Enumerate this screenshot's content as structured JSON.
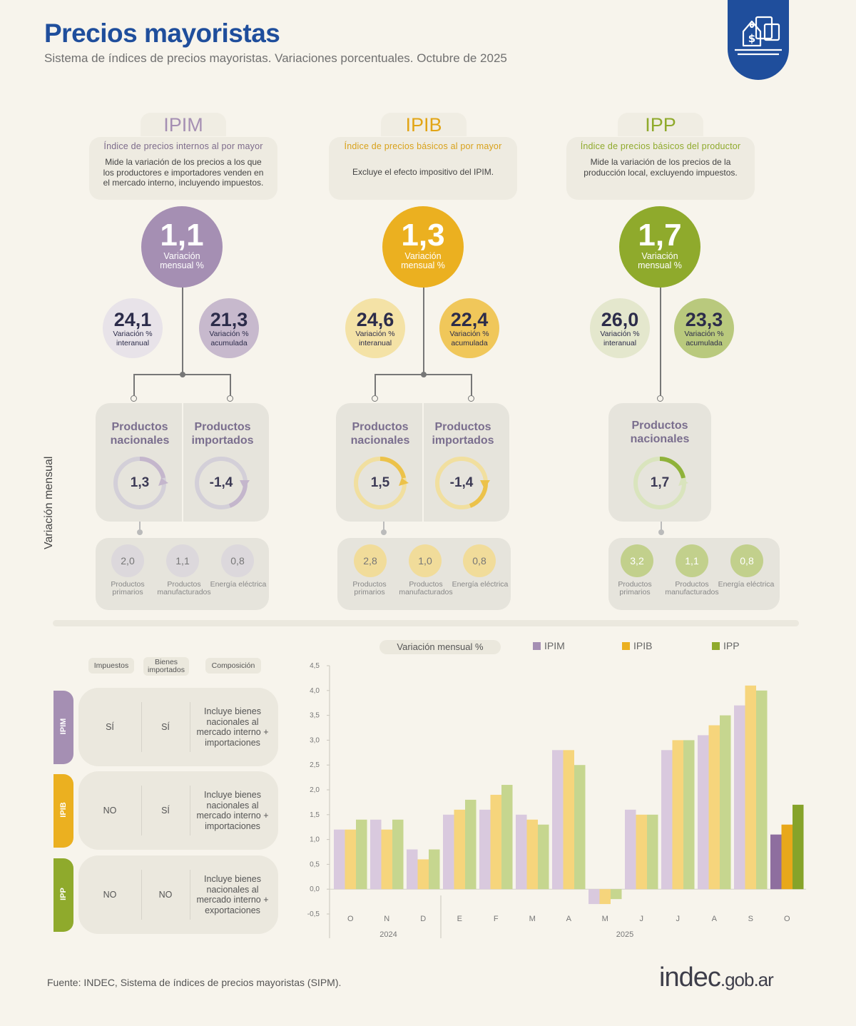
{
  "header": {
    "title": "Precios mayoristas",
    "subtitle": "Sistema de índices de precios mayoristas. Variaciones porcentuales. Octubre de 2025"
  },
  "colors": {
    "ipim": "#a58fb3",
    "ipib": "#ebb020",
    "ipp": "#8faa2c",
    "title": "#1f4e9c"
  },
  "indices": [
    {
      "code": "IPIM",
      "name": "Índice de precios internos al por mayor",
      "description": "Mide la variación de los precios a los que los productores e importadores venden en el mercado interno, incluyendo impuestos.",
      "monthly": "1,1",
      "monthly_label": "Variación mensual %",
      "yoy": "24,1",
      "yoy_label": "Variación % interanual",
      "ytd": "21,3",
      "ytd_label": "Variación % acumulada",
      "national_label": "Productos nacionales",
      "national": "1,3",
      "imported_label": "Productos importados",
      "imported": "-1,4",
      "breakdown": [
        {
          "value": "2,0",
          "label": "Productos primarios"
        },
        {
          "value": "1,1",
          "label": "Productos manufacturados"
        },
        {
          "value": "0,8",
          "label": "Energía eléctrica"
        }
      ]
    },
    {
      "code": "IPIB",
      "name": "Índice de precios básicos al por mayor",
      "description": "Excluye el efecto impositivo del IPIM.",
      "monthly": "1,3",
      "monthly_label": "Variación mensual %",
      "yoy": "24,6",
      "yoy_label": "Variación % interanual",
      "ytd": "22,4",
      "ytd_label": "Variación % acumulada",
      "national_label": "Productos nacionales",
      "national": "1,5",
      "imported_label": "Productos importados",
      "imported": "-1,4",
      "breakdown": [
        {
          "value": "2,8",
          "label": "Productos primarios"
        },
        {
          "value": "1,0",
          "label": "Productos manufacturados"
        },
        {
          "value": "0,8",
          "label": "Energía eléctrica"
        }
      ]
    },
    {
      "code": "IPP",
      "name": "Índice de precios básicos del productor",
      "description": "Mide la variación de los precios de la producción local, excluyendo impuestos.",
      "monthly": "1,7",
      "monthly_label": "Variación mensual %",
      "yoy": "26,0",
      "yoy_label": "Variación % interanual",
      "ytd": "23,3",
      "ytd_label": "Variación % acumulada",
      "national_label": "Productos nacionales",
      "national": "1,7",
      "breakdown": [
        {
          "value": "3,2",
          "label": "Productos primarios"
        },
        {
          "value": "1,1",
          "label": "Productos manufacturados"
        },
        {
          "value": "0,8",
          "label": "Energía eléctrica"
        }
      ]
    }
  ],
  "side_label": "Variación mensual",
  "comparison": {
    "headers": [
      "Impuestos",
      "Bienes importados",
      "Composición"
    ],
    "rows": [
      {
        "code": "IPIM",
        "taxes": "SÍ",
        "imported": "SÍ",
        "composition": "Incluye bienes nacionales al mercado interno + importaciones"
      },
      {
        "code": "IPIB",
        "taxes": "NO",
        "imported": "SÍ",
        "composition": "Incluye bienes nacionales al mercado interno + importaciones"
      },
      {
        "code": "IPP",
        "taxes": "NO",
        "imported": "NO",
        "composition": "Incluye bienes nacionales al mercado interno + exportaciones"
      }
    ]
  },
  "chart_data": {
    "type": "bar",
    "title": "Variación mensual %",
    "categories": [
      "O",
      "N",
      "D",
      "E",
      "F",
      "M",
      "A",
      "M",
      "J",
      "J",
      "A",
      "S",
      "O"
    ],
    "year_labels": [
      "2024",
      "2025"
    ],
    "series": [
      {
        "name": "IPIM",
        "values": [
          1.2,
          1.4,
          0.8,
          1.5,
          1.6,
          1.5,
          2.8,
          -0.3,
          1.6,
          2.8,
          3.1,
          3.7,
          1.1
        ]
      },
      {
        "name": "IPIB",
        "values": [
          1.2,
          1.2,
          0.6,
          1.6,
          1.9,
          1.4,
          2.8,
          -0.3,
          1.5,
          3.0,
          3.3,
          4.1,
          1.3
        ]
      },
      {
        "name": "IPP",
        "values": [
          1.4,
          1.4,
          0.8,
          1.8,
          2.1,
          1.3,
          2.5,
          -0.2,
          1.5,
          3.0,
          3.5,
          4.0,
          1.7
        ]
      }
    ],
    "ylim": [
      -0.5,
      4.5
    ],
    "yticks": [
      "-0,5",
      "0,0",
      "0,5",
      "1,0",
      "1,5",
      "2,0",
      "2,5",
      "3,0",
      "3,5",
      "4,0",
      "4,5"
    ],
    "legend": "top"
  },
  "footer": {
    "source": "Fuente: INDEC, Sistema de índices de precios mayoristas (SIPM).",
    "brand_main": "indec",
    "brand_suffix": ".gob.ar"
  }
}
